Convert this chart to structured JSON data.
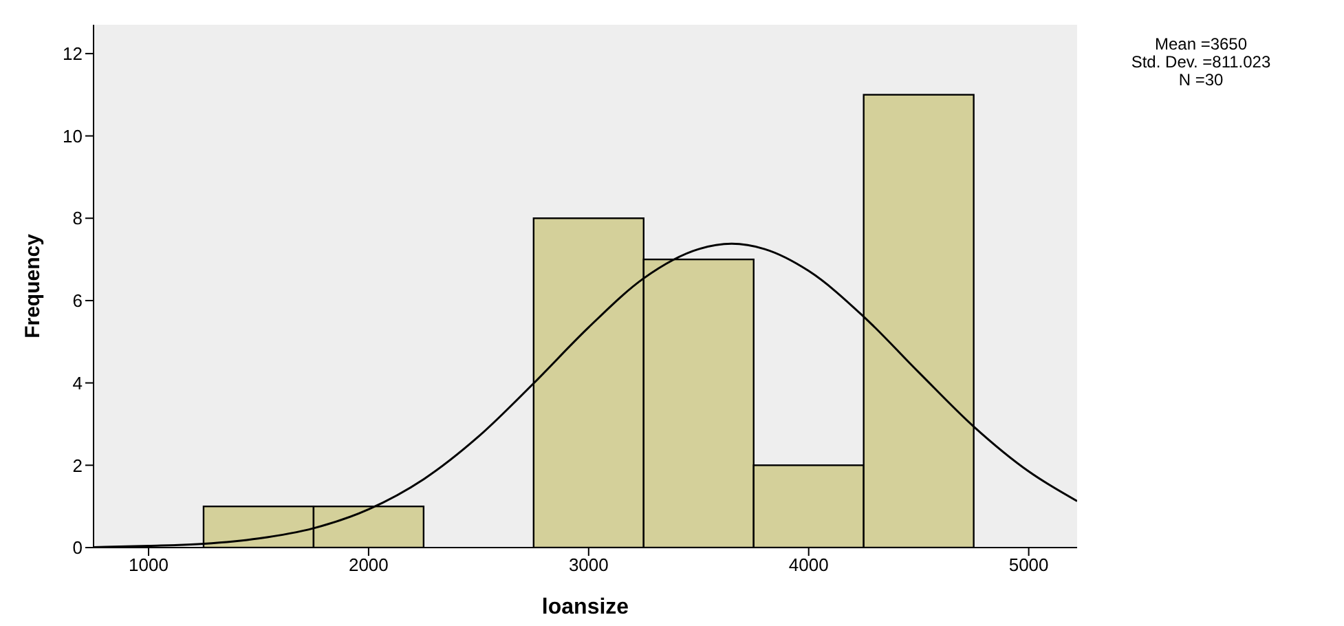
{
  "chart_data": {
    "type": "histogram",
    "xlabel": "loansize",
    "ylabel": "Frequency",
    "bins": [
      1250,
      1750,
      2250,
      2750,
      3250,
      3750,
      4250,
      4750
    ],
    "values": [
      1,
      1,
      0,
      8,
      7,
      2,
      11
    ],
    "color": "#d4d09a",
    "series": [
      {
        "type": "line",
        "color": "#000000",
        "x": [
          750,
          1000,
          1250,
          1500,
          1750,
          2000,
          2250,
          2500,
          2750,
          3000,
          3250,
          3500,
          3650,
          3800,
          4000,
          4250,
          4500,
          4750,
          5000,
          5220
        ],
        "values": [
          0.01,
          0.04,
          0.09,
          0.22,
          0.47,
          0.93,
          1.66,
          2.7,
          3.99,
          5.35,
          6.54,
          7.25,
          7.38,
          7.25,
          6.72,
          5.61,
          4.26,
          2.94,
          1.85,
          1.13
        ]
      }
    ],
    "xlim": [
      750,
      5220
    ],
    "xticks": [
      1000,
      2000,
      3000,
      4000,
      5000
    ],
    "ylim": [
      0,
      12.7
    ],
    "yticks": [
      0,
      2,
      4,
      6,
      8,
      10,
      12
    ],
    "annotations": [
      "Mean =3650",
      "Std. Dev. =811.023",
      "N =30"
    ]
  }
}
